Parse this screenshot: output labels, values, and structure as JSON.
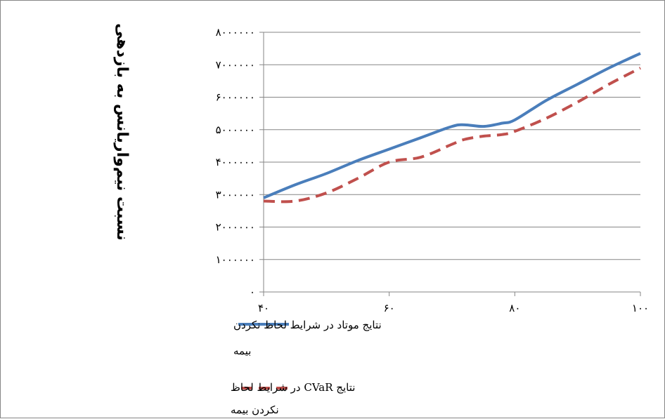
{
  "chart_data": {
    "type": "line",
    "ylabel": "نسبت نیم‌واریانس به بازدهی",
    "xlabel": "",
    "x": [
      40,
      45,
      50,
      55,
      60,
      65,
      70,
      72,
      75,
      78,
      80,
      85,
      90,
      95,
      100
    ],
    "x_tick_labels": [
      "۴۰",
      "۶۰",
      "۸۰",
      "۱۰۰"
    ],
    "x_ticks": [
      40,
      60,
      80,
      100
    ],
    "xlim": [
      40,
      100
    ],
    "y_tick_labels": [
      "۰",
      "۱۰۰۰۰۰۰",
      "۲۰۰۰۰۰۰",
      "۳۰۰۰۰۰۰",
      "۴۰۰۰۰۰۰",
      "۵۰۰۰۰۰۰",
      "۶۰۰۰۰۰۰",
      "۷۰۰۰۰۰۰",
      "۸۰۰۰۰۰۰"
    ],
    "y_ticks": [
      0,
      1000000,
      2000000,
      3000000,
      4000000,
      5000000,
      6000000,
      7000000,
      8000000
    ],
    "ylim": [
      0,
      8000000
    ],
    "grid": true,
    "legend_position": "bottom-left",
    "series": [
      {
        "name": "نتایج موتاد در شرایط  لحاظ نکردن بیمه",
        "legend_lines": [
          "نتایج موتاد در شرایط  لحاظ نکردن",
          "بیمه"
        ],
        "color": "#4a7ebb",
        "dash": "solid",
        "values": [
          2900000,
          3300000,
          3650000,
          4050000,
          4400000,
          4750000,
          5100000,
          5150000,
          5100000,
          5200000,
          5300000,
          5900000,
          6400000,
          6900000,
          7350000
        ]
      },
      {
        "name": "نتایج CVaR در شرایط  لحاظ نکردن بیمه",
        "legend_lines": [
          "نتایج CVaR در شرایط  لحاظ",
          "نکردن بیمه"
        ],
        "color": "#c0504d",
        "dash": "dashed",
        "values": [
          2800000,
          2800000,
          3050000,
          3500000,
          4000000,
          4150000,
          4550000,
          4700000,
          4800000,
          4850000,
          4950000,
          5350000,
          5850000,
          6400000,
          6900000
        ]
      }
    ]
  }
}
